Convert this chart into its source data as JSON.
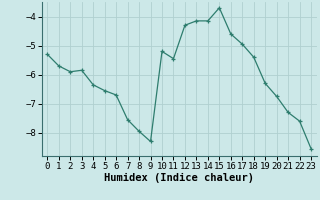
{
  "x": [
    0,
    1,
    2,
    3,
    4,
    5,
    6,
    7,
    8,
    9,
    10,
    11,
    12,
    13,
    14,
    15,
    16,
    17,
    18,
    19,
    20,
    21,
    22,
    23
  ],
  "y": [
    -5.3,
    -5.7,
    -5.9,
    -5.85,
    -6.35,
    -6.55,
    -6.7,
    -7.55,
    -7.95,
    -8.3,
    -5.2,
    -5.45,
    -4.3,
    -4.15,
    -4.15,
    -3.7,
    -4.6,
    -4.95,
    -5.4,
    -6.3,
    -6.75,
    -7.3,
    -7.6,
    -8.55
  ],
  "xlim": [
    -0.5,
    23.5
  ],
  "ylim": [
    -8.8,
    -3.5
  ],
  "yticks": [
    -8,
    -7,
    -6,
    -5,
    -4
  ],
  "xticks": [
    0,
    1,
    2,
    3,
    4,
    5,
    6,
    7,
    8,
    9,
    10,
    11,
    12,
    13,
    14,
    15,
    16,
    17,
    18,
    19,
    20,
    21,
    22,
    23
  ],
  "xlabel": "Humidex (Indice chaleur)",
  "line_color": "#2e7d6e",
  "marker": "+",
  "bg_color": "#cce8e8",
  "grid_color": "#b0d0d0",
  "xlabel_fontsize": 7.5,
  "tick_fontsize": 6.5
}
